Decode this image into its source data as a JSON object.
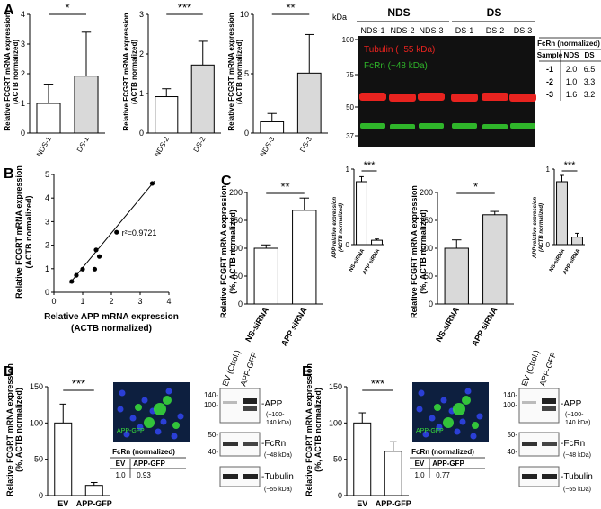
{
  "panels": {
    "A": "A",
    "B": "B",
    "C": "C",
    "D": "D",
    "E": "E"
  },
  "colors": {
    "nds_bar": "#ffffff",
    "ds_bar": "#d9d9d9",
    "blot_bg": "#111111",
    "tubulin": "#e8231f",
    "fcrn": "#2fb52a",
    "micro_bg": "#0d1f3f",
    "gfp": "#39e03a",
    "nuclei": "#2b3fd6"
  },
  "panelA": {
    "ylabel_line1": "Relative FCGRT mRNA expression",
    "ylabel_line2": "(ACTB normalized)",
    "charts": [
      {
        "xticks": [
          "NDS-1",
          "DS-1"
        ],
        "values": [
          1.0,
          1.92
        ],
        "errors": [
          0.65,
          1.48
        ],
        "ylim": [
          0,
          4
        ],
        "yticks": [
          "0",
          "1",
          "2",
          "3",
          "4"
        ],
        "sig": "*"
      },
      {
        "xticks": [
          "NDS-2",
          "DS-2"
        ],
        "values": [
          0.92,
          1.72
        ],
        "errors": [
          0.2,
          0.6
        ],
        "ylim": [
          0,
          3
        ],
        "yticks": [
          "0",
          "1",
          "2",
          "3"
        ],
        "sig": "***"
      },
      {
        "xticks": [
          "NDS-3",
          "DS-3"
        ],
        "values": [
          0.95,
          5.05
        ],
        "errors": [
          0.7,
          3.25
        ],
        "ylim": [
          0,
          10
        ],
        "yticks": [
          "0",
          "5",
          "10"
        ],
        "sig": "**"
      }
    ],
    "blot": {
      "kda": "kDa",
      "groups": [
        "NDS",
        "DS"
      ],
      "lanes": [
        "NDS-1",
        "NDS-2",
        "NDS-3",
        "DS-1",
        "DS-2",
        "DS-3"
      ],
      "markers": [
        "100",
        "75",
        "50",
        "37"
      ],
      "tubulin_label": "Tubulin (~55 kDa)",
      "fcrn_label": "FcRn (~48 kDa)"
    },
    "table": {
      "title": "FcRn (normalized)",
      "headers": [
        "Sample",
        "NDS",
        "DS"
      ],
      "rows": [
        [
          "-1",
          "2.0",
          "6.5"
        ],
        [
          "-2",
          "1.0",
          "3.3"
        ],
        [
          "-3",
          "1.6",
          "3.2"
        ]
      ]
    }
  },
  "panelB": {
    "ylabel_line1": "Relative FCGRT mRNA expression",
    "ylabel_line2": "(ACTB normalized)",
    "xlabel_line1": "Relative APP mRNA expression",
    "xlabel_line2": "(ACTB normalized)",
    "r2": "r²=0.9721",
    "xticks": [
      "0",
      "1",
      "2",
      "3",
      "4"
    ],
    "yticks": [
      "0",
      "1",
      "2",
      "3",
      "4",
      "5"
    ],
    "xlim": [
      0,
      4
    ],
    "ylim": [
      0,
      5
    ],
    "points": [
      [
        0.62,
        0.46
      ],
      [
        0.78,
        0.72
      ],
      [
        1.0,
        0.98
      ],
      [
        1.42,
        0.98
      ],
      [
        1.47,
        1.8
      ],
      [
        1.58,
        1.52
      ],
      [
        2.18,
        2.55
      ],
      [
        3.42,
        4.62
      ]
    ],
    "fit": [
      [
        0.55,
        0.38
      ],
      [
        3.5,
        4.72
      ]
    ]
  },
  "panelC": {
    "ylabel_line1": "Relative FCGRT mRNA expression",
    "ylabel_line2": "(%, ACTB normalized)",
    "inset_ylabel_line1": "APP relative expression",
    "inset_ylabel_line2": "(ACTB normalized)",
    "main": [
      {
        "xticks": [
          "NS-siRNA",
          "APP siRNA"
        ],
        "values": [
          100,
          168
        ],
        "errors": [
          6,
          22
        ],
        "ylim": [
          0,
          200
        ],
        "yticks": [
          "0",
          "50",
          "100",
          "150",
          "200"
        ],
        "sig": "**"
      },
      {
        "xticks": [
          "NS-siRNA",
          "APP siRNA"
        ],
        "values": [
          100,
          160
        ],
        "errors": [
          15,
          6
        ],
        "ylim": [
          0,
          200
        ],
        "yticks": [
          "0",
          "50",
          "100",
          "150",
          "200"
        ],
        "sig": "*"
      }
    ],
    "insets": [
      {
        "xticks": [
          "NS-siRNA",
          "APP siRNA"
        ],
        "values": [
          1.0,
          0.07
        ],
        "errors": [
          0.08,
          0.02
        ],
        "ylim": [
          0,
          1.2
        ],
        "yticks": [
          "0",
          "1"
        ],
        "sig": "***"
      },
      {
        "xticks": [
          "NS-siRNA",
          "APP siRNA"
        ],
        "values": [
          1.0,
          0.12
        ],
        "errors": [
          0.1,
          0.06
        ],
        "ylim": [
          0,
          1.2
        ],
        "yticks": [
          "0",
          "1"
        ],
        "sig": "***"
      }
    ]
  },
  "panelDE": {
    "ylabel_line1": "Relative FCGRT mRNA expression",
    "ylabel_line2": "(%, ACTB normalized)",
    "micro_label": "APP-GFP",
    "lanes": [
      "EV (Ctrol.)",
      "APP-GFP"
    ],
    "app_label": "-APP",
    "app_sub": "(~100-",
    "app_sub2": "140 kDa)",
    "fcrn_label": "-FcRn",
    "fcrn_sub": "(~48 kDa)",
    "tub_label": "-Tubulin",
    "tub_sub": "(~55 kDa)",
    "table_title": "FcRn (normalized)",
    "table_headers": [
      "EV",
      "APP-GFP"
    ],
    "D": {
      "xticks": [
        "EV",
        "APP-GFP"
      ],
      "values": [
        100,
        14
      ],
      "errors": [
        26,
        4
      ],
      "ylim": [
        0,
        150
      ],
      "yticks": [
        "0",
        "50",
        "100",
        "150"
      ],
      "sig": "***",
      "table_values": [
        "1.0",
        "0.93"
      ],
      "markers_app": [
        "140-",
        "100-"
      ],
      "markers_fcrn": [
        "50-",
        "40-"
      ]
    },
    "E": {
      "xticks": [
        "EV",
        "APP-GFP"
      ],
      "values": [
        100,
        61
      ],
      "errors": [
        14,
        13
      ],
      "ylim": [
        0,
        150
      ],
      "yticks": [
        "0",
        "50",
        "100",
        "150"
      ],
      "sig": "***",
      "table_values": [
        "1.0",
        "0.77"
      ],
      "markers_app": [
        "140-",
        "100-"
      ],
      "markers_fcrn": [
        "50-",
        "40-"
      ]
    }
  }
}
